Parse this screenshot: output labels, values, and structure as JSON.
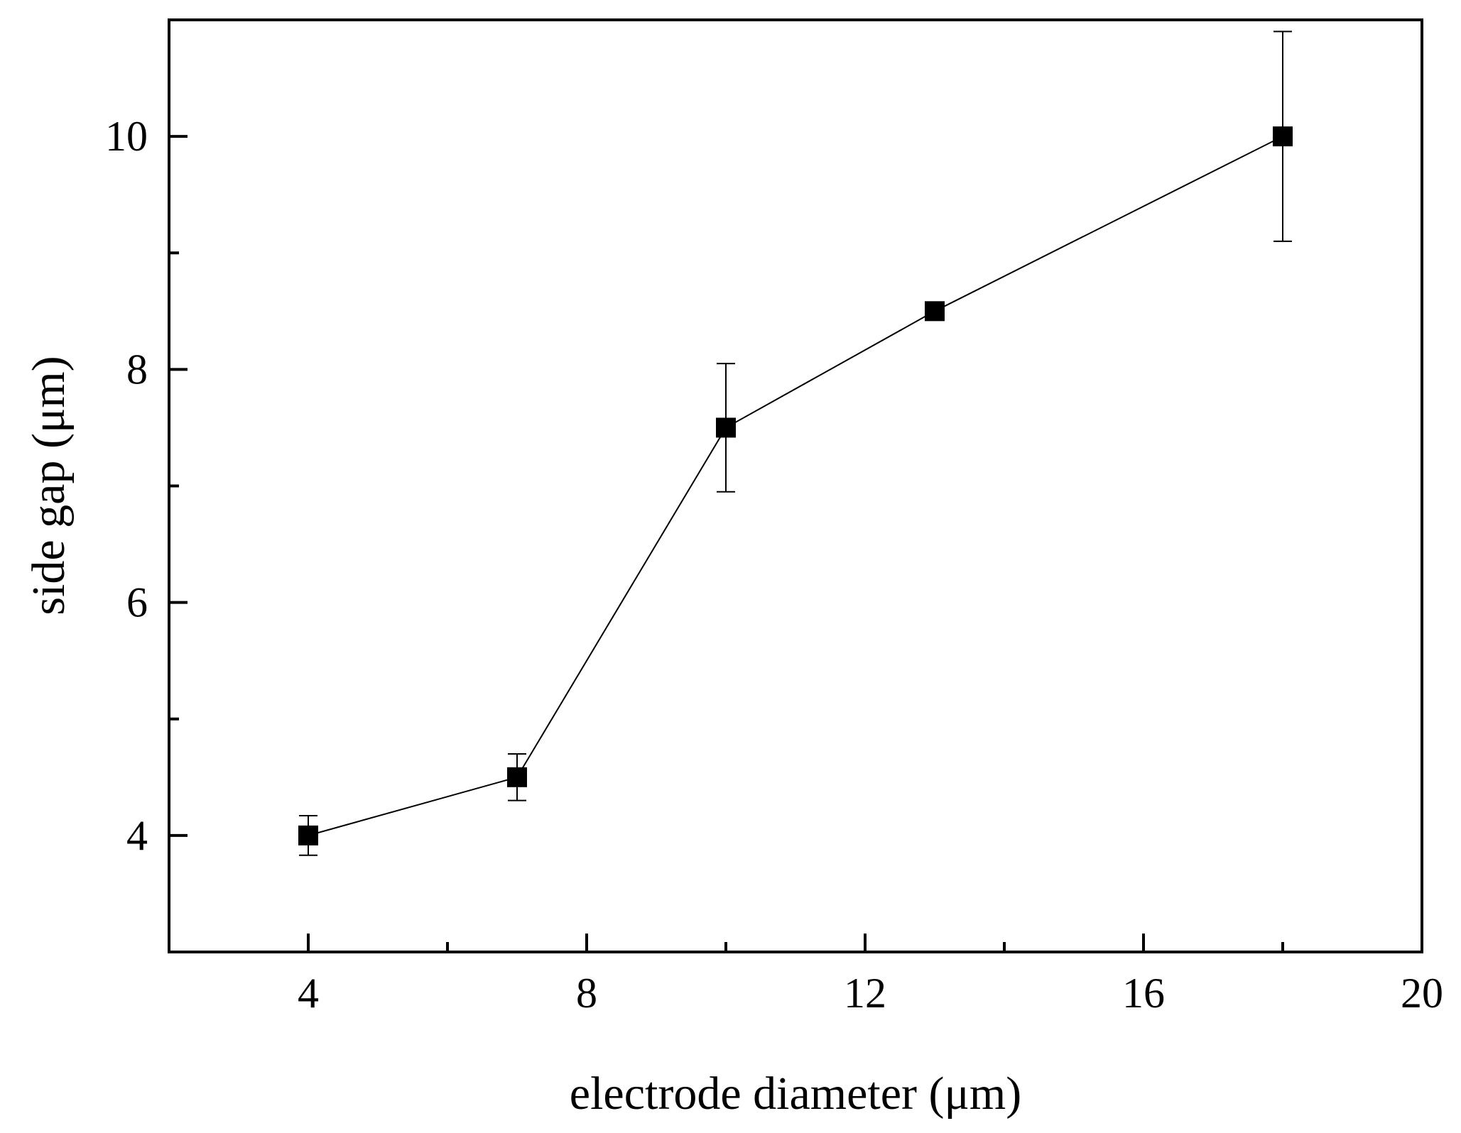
{
  "chart_data": {
    "type": "scatter",
    "title": "",
    "xlabel": "electrode diameter (μm)",
    "ylabel": "side gap (μm)",
    "xlim": [
      2,
      20
    ],
    "ylim": [
      3,
      11
    ],
    "x_ticks": [
      4,
      8,
      12,
      16,
      20
    ],
    "x_minor_ticks": [
      6,
      10,
      14,
      18
    ],
    "y_ticks": [
      4,
      6,
      8,
      10
    ],
    "y_minor_ticks": [
      5,
      7,
      9
    ],
    "grid": false,
    "marker": "square",
    "connected": true,
    "series": [
      {
        "x": [
          4,
          7,
          10,
          13,
          18
        ],
        "y": [
          4.0,
          4.5,
          7.5,
          8.5,
          10.0
        ],
        "y_error": [
          0.17,
          0.2,
          0.55,
          0,
          0.9
        ]
      }
    ]
  },
  "colors": {
    "line": "#000000",
    "marker": "#000000",
    "background": "#ffffff"
  }
}
